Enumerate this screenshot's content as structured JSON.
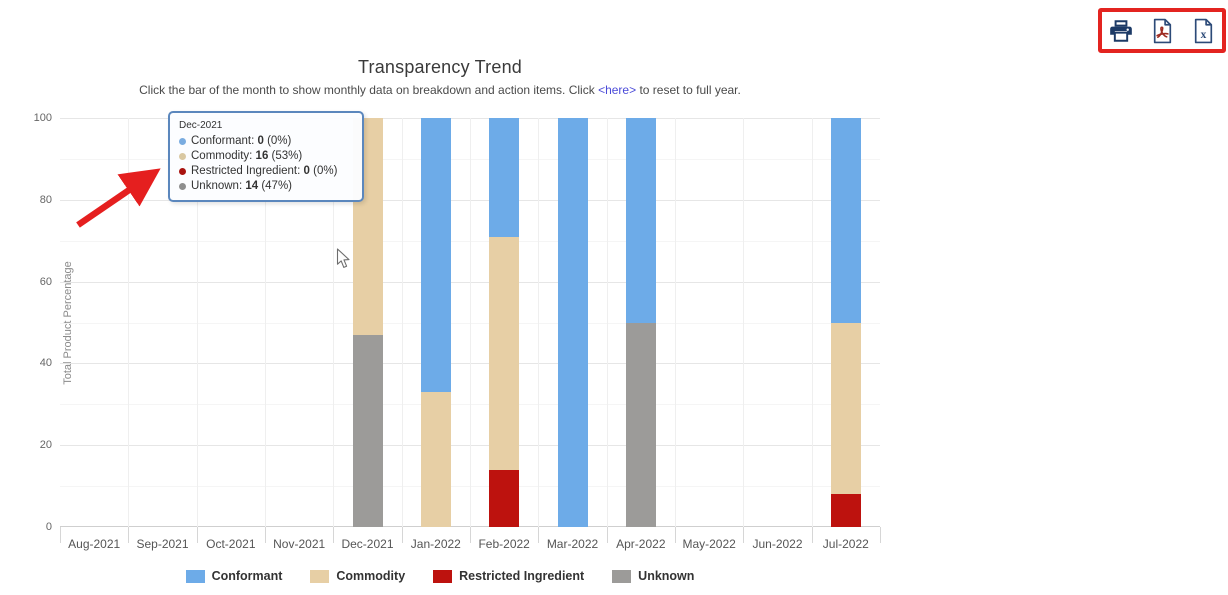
{
  "chart": {
    "title": "Transparency Trend",
    "subtitle_before": "Click the bar of the month to show monthly data on breakdown and action items. Click",
    "subtitle_link": "<here>",
    "subtitle_after": "to reset to full year."
  },
  "chart_data": {
    "type": "bar",
    "stacked": true,
    "title": "Transparency Trend",
    "xlabel": "",
    "ylabel": "Total Product Percentage",
    "ylim": [
      0,
      100
    ],
    "yticks": [
      0,
      20,
      40,
      60,
      80,
      100
    ],
    "grid": true,
    "legend_position": "bottom",
    "categories": [
      "Aug-2021",
      "Sep-2021",
      "Oct-2021",
      "Nov-2021",
      "Dec-2021",
      "Jan-2022",
      "Feb-2022",
      "Mar-2022",
      "Apr-2022",
      "May-2022",
      "Jun-2022",
      "Jul-2022"
    ],
    "series": [
      {
        "name": "Conformant",
        "color": "#6dabe8",
        "values": [
          0,
          0,
          0,
          0,
          0,
          67,
          29,
          100,
          50,
          0,
          0,
          50
        ]
      },
      {
        "name": "Commodity",
        "color": "#e7cfa5",
        "values": [
          0,
          0,
          0,
          0,
          53,
          33,
          57,
          0,
          0,
          0,
          0,
          42
        ]
      },
      {
        "name": "Restricted Ingredient",
        "color": "#bd120e",
        "values": [
          0,
          0,
          0,
          0,
          0,
          0,
          14,
          0,
          0,
          0,
          0,
          8
        ]
      },
      {
        "name": "Unknown",
        "color": "#9c9b99",
        "values": [
          0,
          0,
          0,
          0,
          47,
          0,
          0,
          0,
          50,
          0,
          0,
          0
        ]
      }
    ],
    "stack_order_bottom_to_top": [
      "Restricted Ingredient",
      "Unknown",
      "Commodity",
      "Conformant"
    ]
  },
  "tooltip": {
    "header": "Dec-2021",
    "rows": [
      {
        "label": "Conformant",
        "value": "0",
        "pct": "(0%)",
        "color": "#7aace0"
      },
      {
        "label": "Commodity",
        "value": "16",
        "pct": "(53%)",
        "color": "#d9c8a2"
      },
      {
        "label": "Restricted Ingredient",
        "value": "0",
        "pct": "(0%)",
        "color": "#a91310"
      },
      {
        "label": "Unknown",
        "value": "14",
        "pct": "(47%)",
        "color": "#8e8e8e"
      }
    ]
  },
  "export_toolbar": {
    "highlight_color": "#e32420",
    "icons": [
      {
        "name": "print-icon",
        "label": "Print chart"
      },
      {
        "name": "pdf-export-icon",
        "label": "Export to PDF"
      },
      {
        "name": "excel-export-icon",
        "label": "Export to Excel"
      }
    ]
  }
}
